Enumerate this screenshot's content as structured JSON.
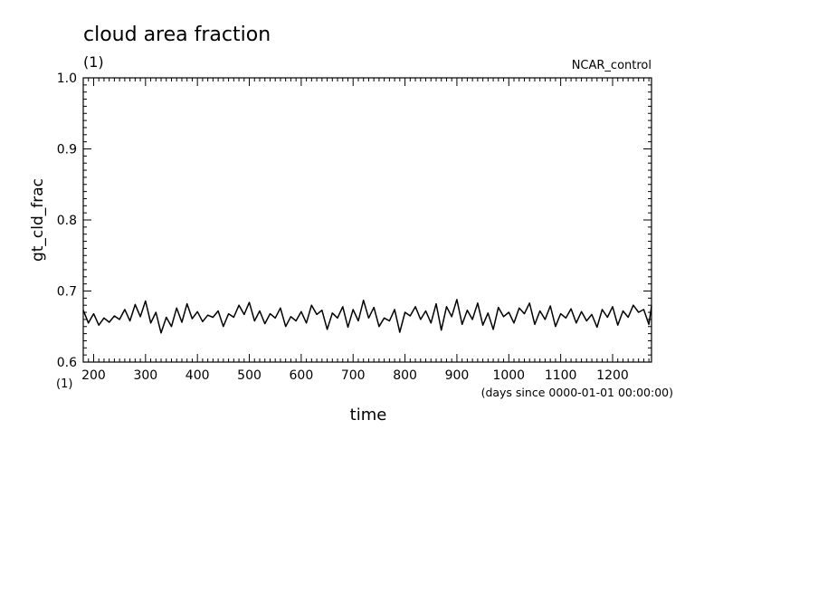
{
  "chart_data": {
    "type": "line",
    "title": "cloud area fraction",
    "title_unit": "(1)",
    "experiment": "NCAR_control",
    "xlabel": "time",
    "xlabel_unit": "(days since 0000-01-01 00:00:00)",
    "ylabel": "gt_cld_frac",
    "ylabel_unit": "(1)",
    "xlim": [
      180,
      1275
    ],
    "ylim": [
      0.6,
      1.0
    ],
    "x_ticks": [
      200,
      300,
      400,
      500,
      600,
      700,
      800,
      900,
      1000,
      1100,
      1200
    ],
    "y_ticks": [
      0.6,
      0.7,
      0.8,
      0.9,
      1.0
    ],
    "y_tick_labels": [
      "0.6",
      "0.7",
      "0.8",
      "0.9",
      "1.0"
    ],
    "grid": false,
    "line_color": "#000000",
    "series": [
      {
        "x": [
          180,
          190,
          200,
          210,
          220,
          230,
          240,
          250,
          260,
          270,
          280,
          290,
          300,
          310,
          320,
          330,
          340,
          350,
          360,
          370,
          380,
          390,
          400,
          410,
          420,
          430,
          440,
          450,
          460,
          470,
          480,
          490,
          500,
          510,
          520,
          530,
          540,
          550,
          560,
          570,
          580,
          590,
          600,
          610,
          620,
          630,
          640,
          650,
          660,
          670,
          680,
          690,
          700,
          710,
          720,
          730,
          740,
          750,
          760,
          770,
          780,
          790,
          800,
          810,
          820,
          830,
          840,
          850,
          860,
          870,
          880,
          890,
          900,
          910,
          920,
          930,
          940,
          950,
          960,
          970,
          980,
          990,
          1000,
          1010,
          1020,
          1030,
          1040,
          1050,
          1060,
          1070,
          1080,
          1090,
          1100,
          1110,
          1120,
          1130,
          1140,
          1150,
          1160,
          1170,
          1180,
          1190,
          1200,
          1210,
          1220,
          1230,
          1240,
          1250,
          1260,
          1270,
          1275
        ],
        "y": [
          0.673,
          0.655,
          0.668,
          0.652,
          0.662,
          0.656,
          0.665,
          0.66,
          0.674,
          0.658,
          0.681,
          0.664,
          0.686,
          0.655,
          0.67,
          0.641,
          0.663,
          0.65,
          0.676,
          0.656,
          0.682,
          0.661,
          0.671,
          0.657,
          0.666,
          0.663,
          0.672,
          0.65,
          0.668,
          0.663,
          0.68,
          0.667,
          0.684,
          0.658,
          0.672,
          0.654,
          0.668,
          0.662,
          0.676,
          0.65,
          0.664,
          0.658,
          0.671,
          0.655,
          0.68,
          0.667,
          0.673,
          0.646,
          0.669,
          0.662,
          0.678,
          0.649,
          0.674,
          0.658,
          0.687,
          0.662,
          0.677,
          0.65,
          0.662,
          0.658,
          0.674,
          0.642,
          0.67,
          0.665,
          0.678,
          0.66,
          0.672,
          0.655,
          0.682,
          0.645,
          0.678,
          0.664,
          0.688,
          0.653,
          0.673,
          0.66,
          0.683,
          0.652,
          0.669,
          0.646,
          0.677,
          0.664,
          0.67,
          0.655,
          0.676,
          0.668,
          0.683,
          0.653,
          0.672,
          0.66,
          0.679,
          0.65,
          0.668,
          0.662,
          0.675,
          0.655,
          0.671,
          0.658,
          0.667,
          0.649,
          0.674,
          0.663,
          0.678,
          0.652,
          0.672,
          0.663,
          0.68,
          0.67,
          0.674,
          0.653,
          0.679
        ]
      }
    ]
  }
}
